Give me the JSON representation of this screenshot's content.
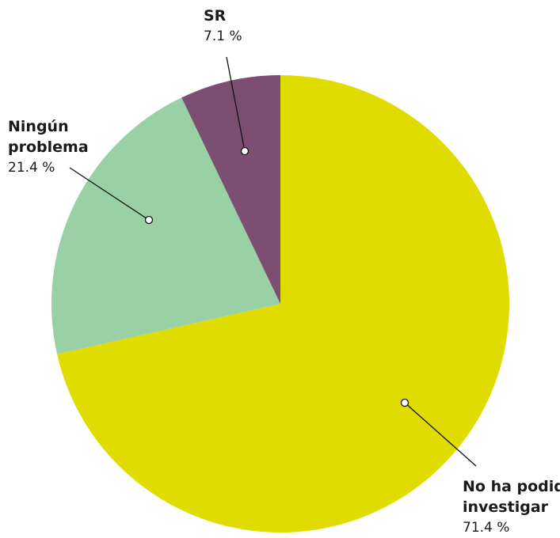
{
  "chart_data": {
    "type": "pie",
    "title": "",
    "slices": [
      {
        "label_lines": [
          "No ha podido",
          "investigar"
        ],
        "value": 71.4,
        "value_text": "71.4 %",
        "color": "#e0dc00"
      },
      {
        "label_lines": [
          "Ningún",
          "problema"
        ],
        "value": 21.4,
        "value_text": "21.4 %",
        "color": "#99d0a6"
      },
      {
        "label_lines": [
          "SR"
        ],
        "value": 7.1,
        "value_text": "7.1 %",
        "color": "#7b4e72"
      }
    ]
  }
}
